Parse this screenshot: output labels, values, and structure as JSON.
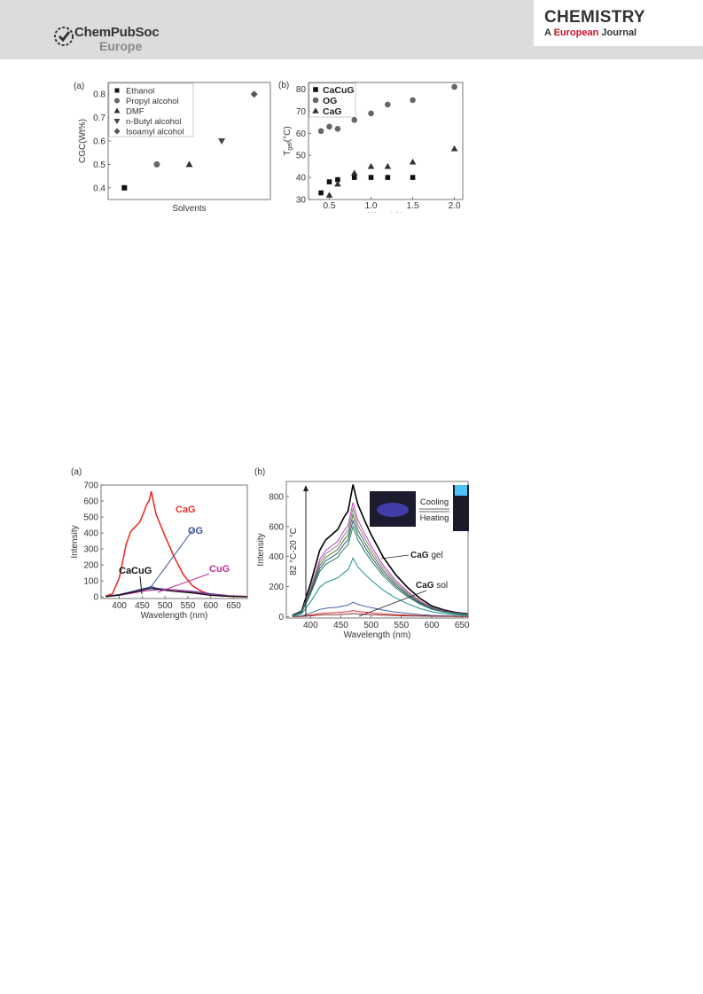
{
  "header": {
    "publisher": "ChemPubSoc",
    "publisher_sub": "Europe",
    "journal_title": "CHEMISTRY",
    "journal_sub_a": "A ",
    "journal_sub_european": "European",
    "journal_sub_journal": " Journal"
  },
  "colors": {
    "header_bg": "#dcdcdc",
    "accent_red": "#c8102e"
  },
  "figure1": {
    "panel_a": {
      "label": "(a)",
      "ylabel": "CGC(Wt%)",
      "xlabel": "Solvents",
      "chart_data": {
        "type": "scatter",
        "xlabel": "Solvents",
        "ylabel": "CGC(Wt%)",
        "ylim": [
          0.35,
          0.85
        ],
        "yticks": [
          "0.4",
          "0.5",
          "0.6",
          "0.7",
          "0.8"
        ],
        "legend_position": "top-left",
        "series": [
          {
            "name": "Ethanol",
            "marker": "square",
            "x": 1,
            "y": 0.4
          },
          {
            "name": "Propyl alcohol",
            "marker": "circle",
            "x": 2,
            "y": 0.5
          },
          {
            "name": "DMF",
            "marker": "triangle-up",
            "x": 3,
            "y": 0.5
          },
          {
            "name": "n-Butyl alcohol",
            "marker": "triangle-down",
            "x": 4,
            "y": 0.6
          },
          {
            "name": "Isoamyl alcohol",
            "marker": "diamond",
            "x": 5,
            "y": 0.8
          }
        ]
      }
    },
    "panel_b": {
      "label": "(b)",
      "ylabel_main": "T",
      "ylabel_sub": "gel",
      "ylabel_unit": "(°C)",
      "xlabel": "Wt, w/v%",
      "chart_data": {
        "type": "scatter",
        "xlabel": "Wt, w/v%",
        "ylabel": "Tgel(°C)",
        "xlim": [
          0.25,
          2.1
        ],
        "ylim": [
          30,
          83
        ],
        "xticks": [
          "0.5",
          "1.0",
          "1.5",
          "2.0"
        ],
        "yticks": [
          "30",
          "40",
          "50",
          "60",
          "70",
          "80"
        ],
        "legend_position": "top-left",
        "series": [
          {
            "name": "CaCuG",
            "marker": "square",
            "x": [
              0.4,
              0.5,
              0.6,
              0.8,
              1.0,
              1.2,
              1.5
            ],
            "y": [
              33,
              38,
              39,
              40,
              40,
              40,
              40
            ]
          },
          {
            "name": "OG",
            "marker": "circle",
            "x": [
              0.4,
              0.5,
              0.6,
              0.8,
              1.0,
              1.2,
              1.5,
              2.0
            ],
            "y": [
              61,
              63,
              62,
              66,
              69,
              73,
              75,
              81
            ]
          },
          {
            "name": "CaG",
            "marker": "triangle-up",
            "x": [
              0.5,
              0.6,
              0.8,
              1.0,
              1.2,
              1.5,
              2.0
            ],
            "y": [
              32,
              37,
              42,
              45,
              45,
              47,
              53
            ]
          }
        ]
      }
    }
  },
  "figure2": {
    "panel_a": {
      "label": "(a)",
      "ylabel": "Intensity",
      "xlabel": "Wavelength (nm)",
      "chart_data": {
        "type": "line",
        "xlabel": "Wavelength (nm)",
        "ylabel": "Intensity",
        "xlim": [
          360,
          680
        ],
        "ylim": [
          -10,
          700
        ],
        "xticks": [
          "400",
          "450",
          "500",
          "550",
          "600",
          "650"
        ],
        "yticks": [
          "0",
          "100",
          "200",
          "300",
          "400",
          "500",
          "600",
          "700"
        ],
        "series": [
          {
            "name": "CaG",
            "color": "#e8312b",
            "x": [
              370,
              385,
              400,
              415,
              425,
              435,
              445,
              455,
              460,
              465,
              470,
              475,
              480,
              490,
              500,
              520,
              540,
              560,
              580,
              600,
              620,
              640,
              660,
              680
            ],
            "y": [
              5,
              20,
              120,
              330,
              410,
              440,
              470,
              540,
              580,
              600,
              660,
              590,
              520,
              450,
              380,
              250,
              140,
              70,
              35,
              15,
              8,
              4,
              2,
              1
            ]
          },
          {
            "name": "OG",
            "color": "#3b4fa0",
            "x": [
              370,
              400,
              430,
              450,
              465,
              470,
              480,
              500,
              530,
              560,
              600,
              640,
              680
            ],
            "y": [
              3,
              15,
              35,
              50,
              60,
              65,
              55,
              48,
              42,
              35,
              20,
              8,
              3
            ]
          },
          {
            "name": "CuG",
            "color": "#c0309a",
            "x": [
              370,
              400,
              430,
              460,
              480,
              500,
              530,
              560,
              600,
              640,
              680
            ],
            "y": [
              2,
              10,
              25,
              40,
              45,
              48,
              40,
              30,
              15,
              6,
              2
            ]
          },
          {
            "name": "CaCuG",
            "color": "#111111",
            "x": [
              370,
              400,
              430,
              460,
              470,
              490,
              520,
              560,
              600,
              640,
              680
            ],
            "y": [
              2,
              12,
              30,
              50,
              55,
              45,
              35,
              25,
              10,
              4,
              1
            ]
          }
        ]
      }
    },
    "panel_b": {
      "label": "(b)",
      "ylabel": "Intensity",
      "xlabel": "Wavelength (nm)",
      "temp_label": "82 °C-20 °C",
      "cooling": "Cooling",
      "heating": "Heating",
      "gel_label_bold": "CaG",
      "gel_label_rest": " gel",
      "sol_label_bold": "CaG",
      "sol_label_rest": " sol",
      "chart_data": {
        "type": "line",
        "xlabel": "Wavelength (nm)",
        "ylabel": "Intensity",
        "xlim": [
          360,
          660
        ],
        "ylim": [
          -10,
          900
        ],
        "xticks": [
          "400",
          "450",
          "500",
          "550",
          "600",
          "650"
        ],
        "yticks": [
          "0",
          "200",
          "400",
          "600",
          "800"
        ],
        "series": [
          {
            "color": "#000000",
            "peak": 880
          },
          {
            "color": "#c040c0",
            "peak": 760
          },
          {
            "color": "#888888",
            "peak": 720
          },
          {
            "color": "#507030",
            "peak": 680
          },
          {
            "color": "#305080",
            "peak": 640
          },
          {
            "color": "#208060",
            "peak": 600
          },
          {
            "color": "#209090",
            "peak": 390
          },
          {
            "color": "#4060a0",
            "peak": 95
          },
          {
            "color": "#e03030",
            "peak": 40
          },
          {
            "color": "#803030",
            "peak": 20
          }
        ]
      }
    }
  }
}
